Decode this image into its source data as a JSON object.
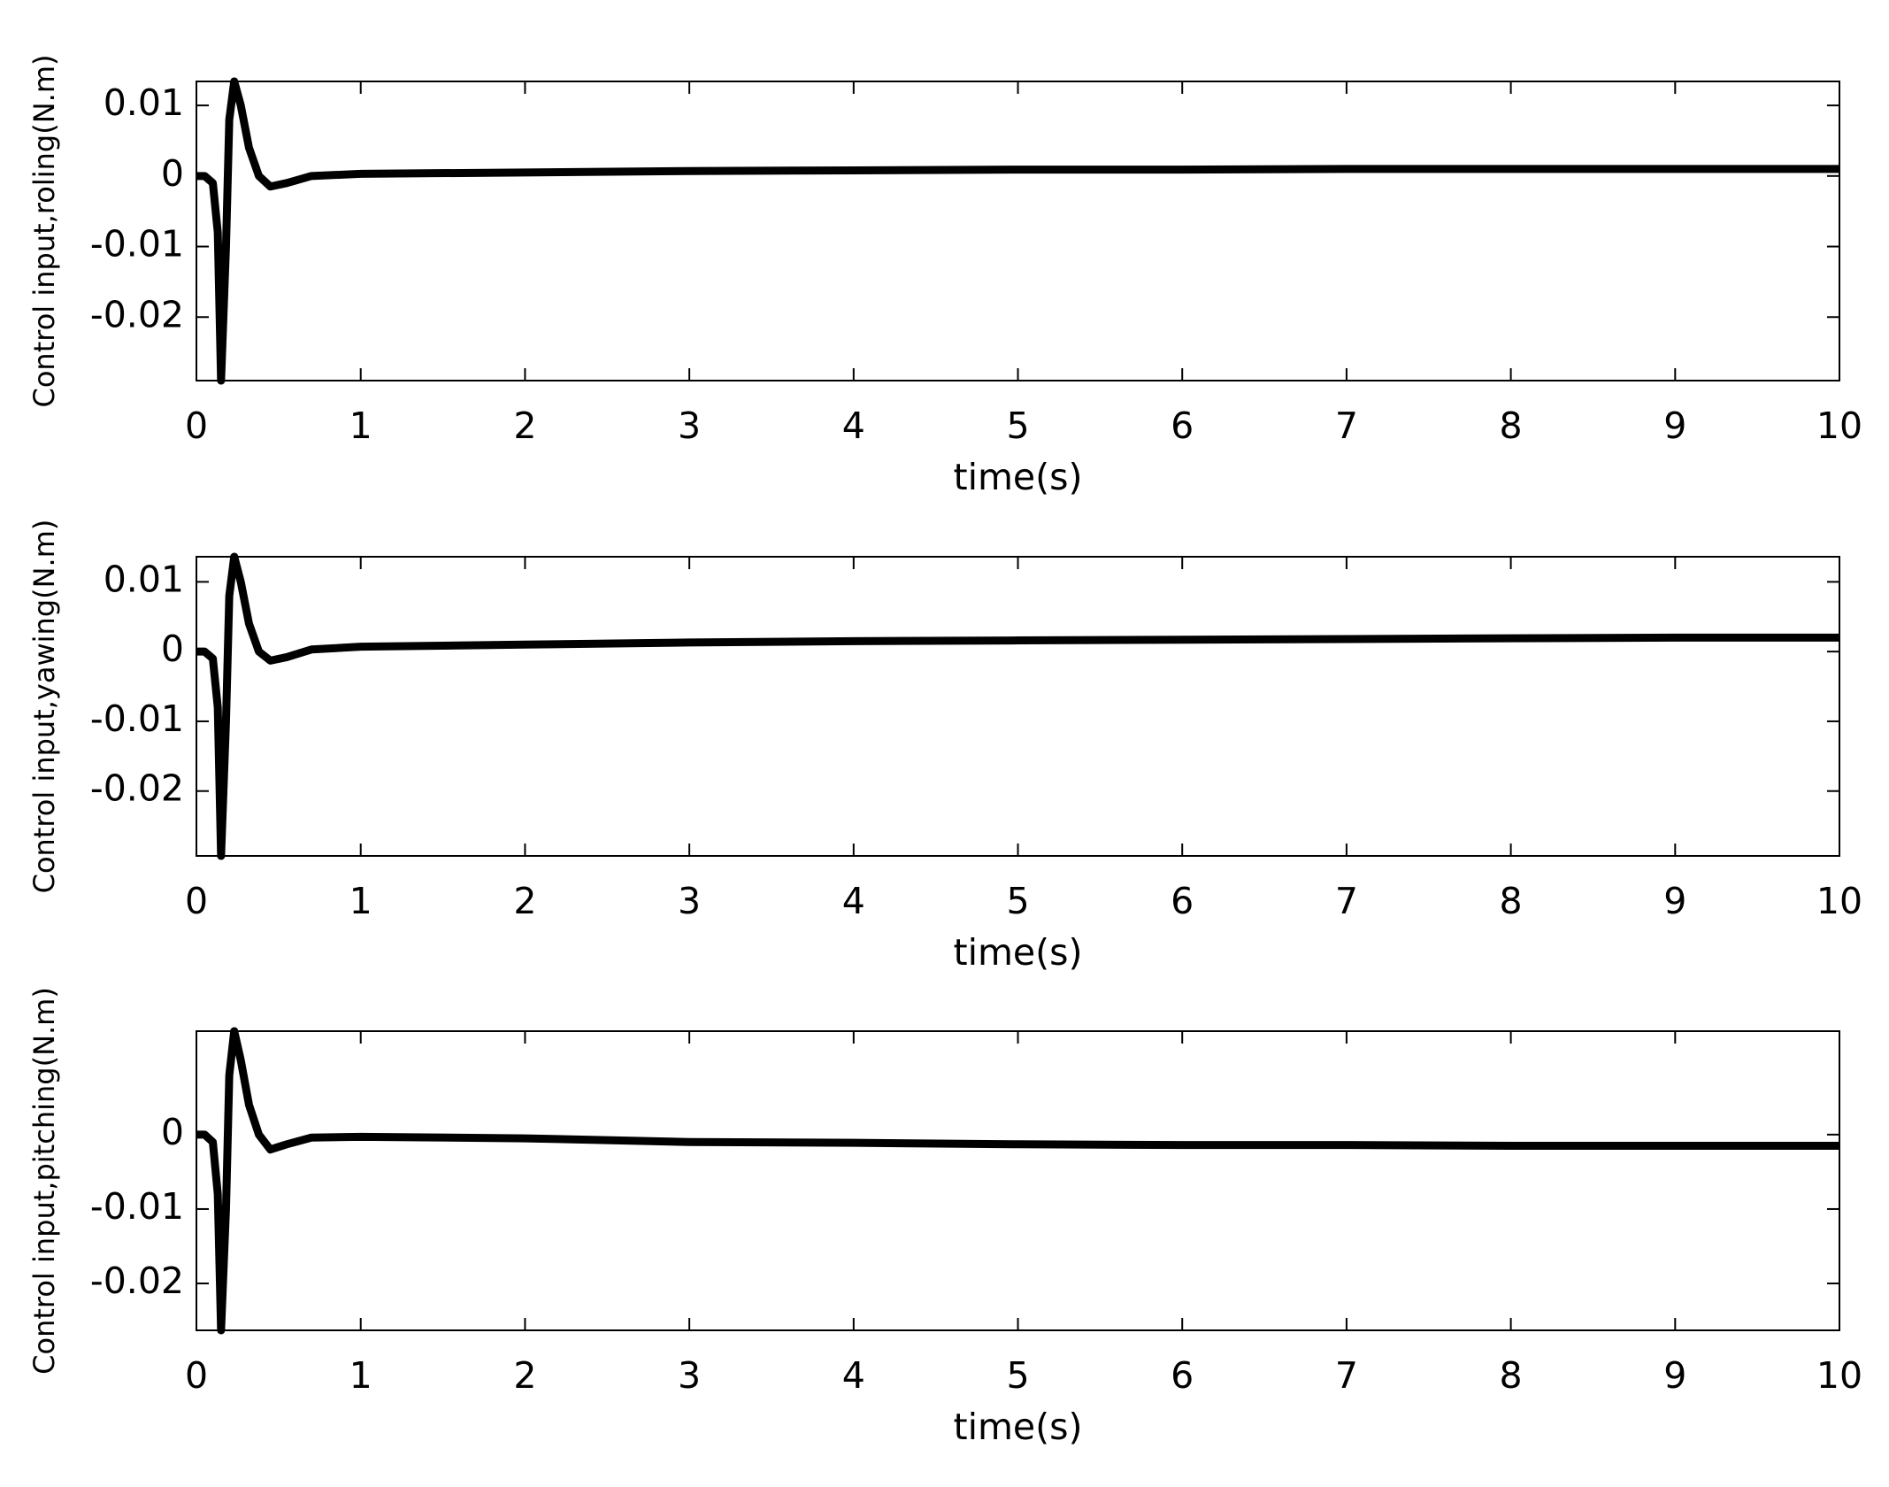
{
  "chart_data": [
    {
      "type": "line",
      "y_label": "Control input,roling(N.m)",
      "x_label": "time(s)",
      "x": [
        0,
        0.05,
        0.1,
        0.13,
        0.15,
        0.18,
        0.2,
        0.23,
        0.27,
        0.32,
        0.38,
        0.45,
        0.55,
        0.7,
        1,
        2,
        3,
        4,
        5,
        6,
        7,
        8,
        9,
        10
      ],
      "series": [
        {
          "color": "#000000",
          "values": [
            0,
            0,
            -0.001,
            -0.008,
            -0.029,
            -0.01,
            0.008,
            0.0134,
            0.01,
            0.004,
            0,
            -0.0015,
            -0.001,
            0,
            0.0003,
            0.0005,
            0.0007,
            0.0008,
            0.0009,
            0.0009,
            0.001,
            0.001,
            0.001,
            0.001
          ]
        }
      ],
      "xlim": [
        0,
        10
      ],
      "ylim": [
        -0.029,
        0.0134
      ],
      "xticks": [
        0,
        1,
        2,
        3,
        4,
        5,
        6,
        7,
        8,
        9,
        10
      ],
      "yticks": [
        0.01,
        0,
        -0.01,
        -0.02
      ]
    },
    {
      "type": "line",
      "y_label": "Control input,yawing(N.m)",
      "x_label": "time(s)",
      "x": [
        0,
        0.05,
        0.1,
        0.13,
        0.15,
        0.18,
        0.2,
        0.23,
        0.27,
        0.32,
        0.38,
        0.45,
        0.55,
        0.7,
        1,
        2,
        3,
        4,
        5,
        6,
        7,
        8,
        9,
        10
      ],
      "series": [
        {
          "color": "#000000",
          "values": [
            0,
            0,
            -0.001,
            -0.008,
            -0.0293,
            -0.01,
            0.008,
            0.0136,
            0.01,
            0.004,
            0,
            -0.0013,
            -0.0008,
            0.0003,
            0.0007,
            0.001,
            0.0013,
            0.0015,
            0.0016,
            0.0017,
            0.0018,
            0.0019,
            0.002,
            0.002
          ]
        }
      ],
      "xlim": [
        0,
        10
      ],
      "ylim": [
        -0.0293,
        0.0136
      ],
      "xticks": [
        0,
        1,
        2,
        3,
        4,
        5,
        6,
        7,
        8,
        9,
        10
      ],
      "yticks": [
        0.01,
        0,
        -0.01,
        -0.02
      ]
    },
    {
      "type": "line",
      "y_label": "Control input,pitching(N.m)",
      "x_label": "time(s)",
      "x": [
        0,
        0.05,
        0.1,
        0.13,
        0.15,
        0.18,
        0.2,
        0.23,
        0.27,
        0.32,
        0.38,
        0.45,
        0.55,
        0.7,
        1,
        2,
        3,
        4,
        5,
        6,
        7,
        8,
        9,
        10
      ],
      "series": [
        {
          "color": "#000000",
          "values": [
            0,
            0,
            -0.001,
            -0.008,
            -0.0263,
            -0.01,
            0.008,
            0.0139,
            0.01,
            0.004,
            0,
            -0.002,
            -0.0013,
            -0.0004,
            -0.0003,
            -0.0005,
            -0.001,
            -0.0011,
            -0.0013,
            -0.0014,
            -0.0014,
            -0.0015,
            -0.0015,
            -0.0015
          ]
        }
      ],
      "xlim": [
        0,
        10
      ],
      "ylim": [
        -0.0263,
        0.0139
      ],
      "xticks": [
        0,
        1,
        2,
        3,
        4,
        5,
        6,
        7,
        8,
        9,
        10
      ],
      "yticks": [
        0,
        -0.01,
        -0.02
      ]
    }
  ]
}
